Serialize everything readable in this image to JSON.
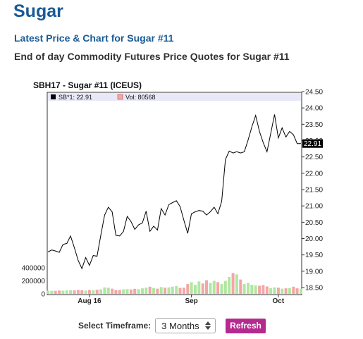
{
  "page": {
    "title": "Sugar",
    "subtitle": "Latest Price & Chart for Sugar #11",
    "description": "End of day Commodity Futures Price Quotes for Sugar #11"
  },
  "chart_data": {
    "type": "line",
    "title": "SBH17 - Sugar #11 (ICEUS)",
    "legend": {
      "price_label": "SB*1: 22.91",
      "volume_label": "Vol: 80568",
      "price_color": "#000000",
      "volume_color": "#f4a6a6"
    },
    "last_value_label": "22.91",
    "price_axis": {
      "ticks": [
        "24.50",
        "24.00",
        "23.50",
        "23.00",
        "22.50",
        "22.00",
        "21.50",
        "21.00",
        "20.50",
        "20.00",
        "19.50",
        "19.00",
        "18.50"
      ],
      "range": [
        18.5,
        24.5
      ]
    },
    "volume_axis": {
      "ticks": [
        "400000",
        "200000",
        "0"
      ],
      "range": [
        0,
        400000
      ]
    },
    "x_labels": [
      "Aug 16",
      "Sep",
      "Oct"
    ],
    "x_label_index": [
      11,
      38,
      61
    ],
    "price": [
      19.59,
      19.65,
      19.62,
      19.58,
      19.82,
      19.85,
      20.08,
      19.72,
      19.33,
      19.08,
      19.42,
      19.18,
      19.48,
      19.46,
      20.1,
      20.72,
      20.96,
      20.82,
      20.1,
      20.08,
      20.22,
      20.68,
      20.52,
      20.28,
      20.42,
      20.48,
      20.84,
      20.22,
      20.38,
      20.26,
      20.92,
      20.72,
      21.04,
      21.1,
      21.16,
      20.98,
      20.56,
      20.16,
      20.76,
      20.82,
      20.86,
      20.84,
      20.72,
      20.82,
      20.96,
      20.76,
      21.14,
      22.42,
      22.68,
      22.62,
      22.66,
      22.62,
      22.66,
      23.02,
      23.42,
      23.77,
      23.28,
      22.94,
      22.66,
      23.22,
      23.8,
      23.08,
      23.39,
      23.11,
      23.28,
      23.18,
      22.91,
      22.91
    ],
    "volume": [
      50000,
      48000,
      46000,
      52000,
      50000,
      55000,
      58000,
      55000,
      62000,
      58000,
      50000,
      62000,
      55000,
      65000,
      70000,
      100000,
      95000,
      80000,
      62000,
      60000,
      70000,
      72000,
      68000,
      78000,
      72000,
      85000,
      95000,
      110000,
      90000,
      80000,
      105000,
      95000,
      100000,
      110000,
      120000,
      92000,
      95000,
      150000,
      180000,
      140000,
      190000,
      160000,
      210000,
      170000,
      200000,
      180000,
      150000,
      200000,
      260000,
      320000,
      300000,
      220000,
      150000,
      170000,
      140000,
      130000,
      125000,
      135000,
      115000,
      90000,
      100000,
      95000,
      80000,
      85000,
      90000,
      110000,
      85000,
      80568
    ],
    "up_color": "#b0e7a0",
    "down_color": "#f4a6a6",
    "line_color": "#000000",
    "grid": false
  },
  "controls": {
    "timeframe_label": "Select Timeframe:",
    "timeframe_value": "3 Months",
    "refresh_label": "Refresh"
  }
}
